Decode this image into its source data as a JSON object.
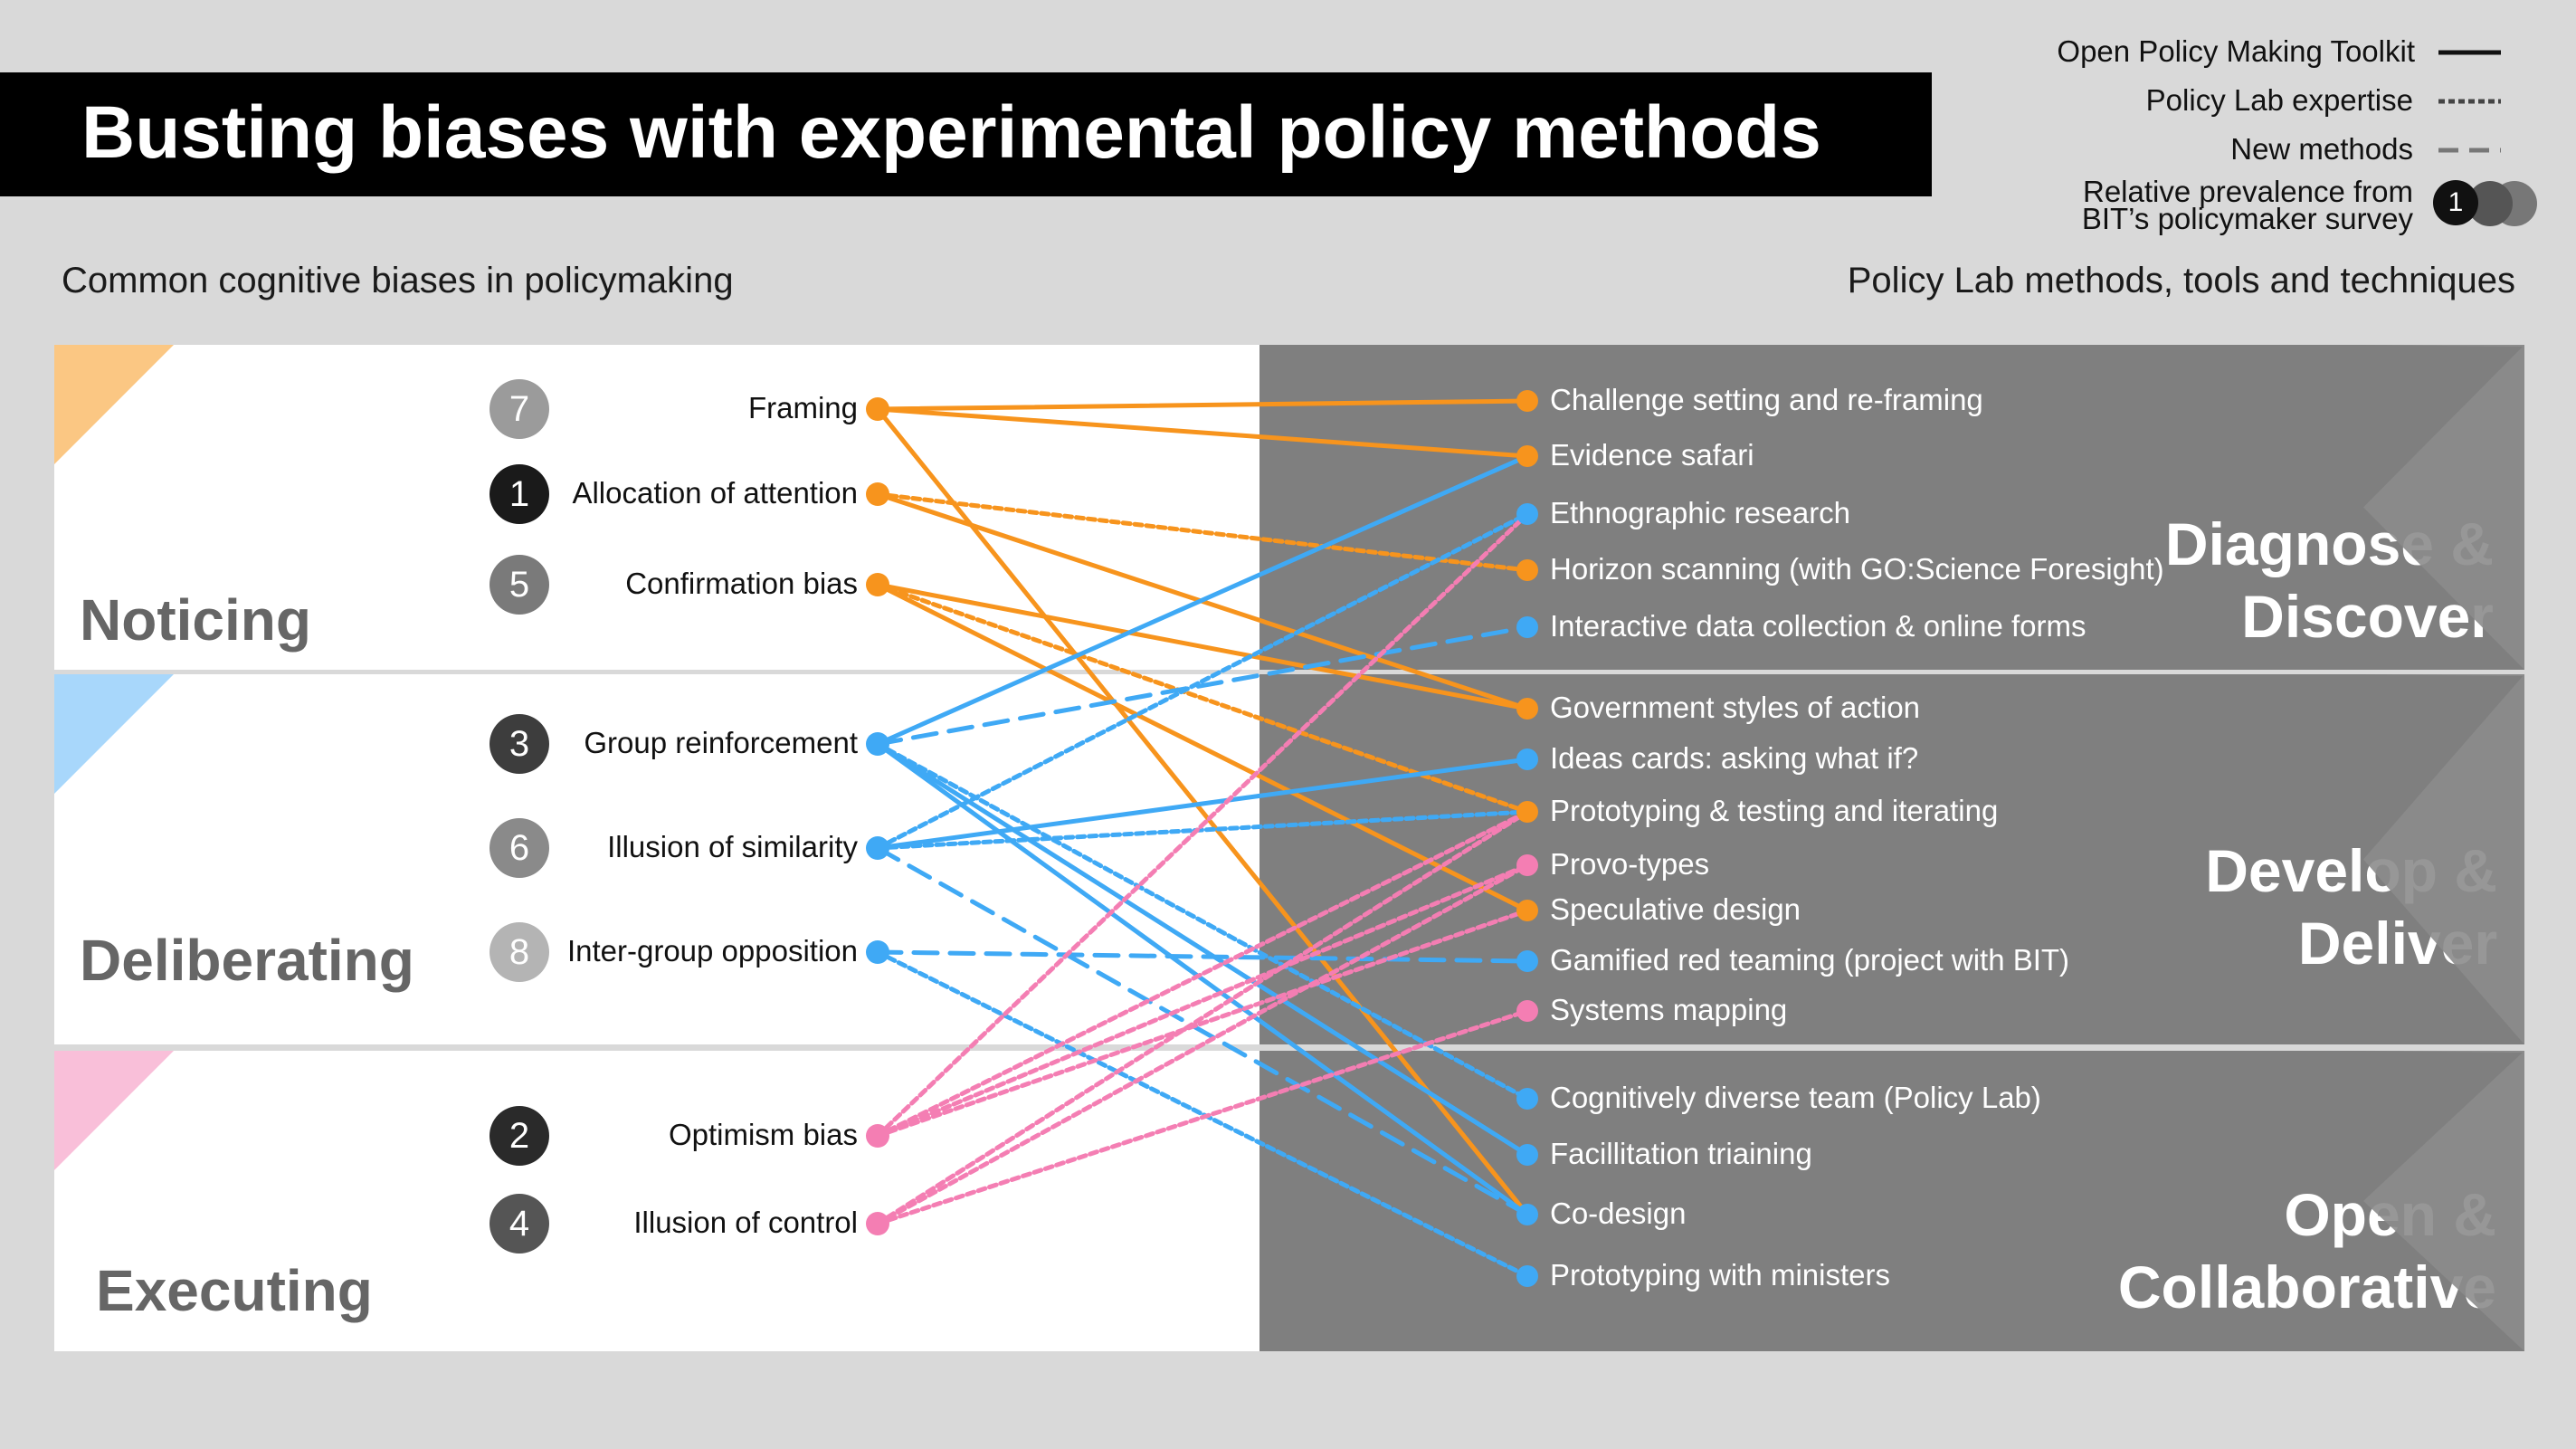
{
  "title": "Busting biases with experimental policy methods",
  "left_heading": "Common cognitive biases in policymaking",
  "right_heading": "Policy Lab methods, tools and techniques",
  "legend": {
    "toolkit": "Open Policy Making Toolkit",
    "expertise": "Policy Lab expertise",
    "new_methods": "New methods",
    "prevalence_line1": "Relative prevalence from",
    "prevalence_line2": "BIT’s policymaker survey",
    "prevalence_example": "1"
  },
  "colors": {
    "noticing": "#f7941d",
    "deliberating": "#3fa9f5",
    "executing": "#f47eb3",
    "panel": "#7f7f7f"
  },
  "categories": [
    {
      "id": "noticing",
      "label": "Noticing"
    },
    {
      "id": "deliberating",
      "label": "Deliberating"
    },
    {
      "id": "executing",
      "label": "Executing"
    }
  ],
  "stages": [
    {
      "line1": "Diagnose &",
      "line2": "Discover"
    },
    {
      "line1": "Develop &",
      "line2": "Deliver"
    },
    {
      "line1": "Open &",
      "line2": "Collaborative"
    }
  ],
  "biases": [
    {
      "id": "framing",
      "label": "Framing",
      "rank": "7",
      "badge_color": "#9b9b9b",
      "category": "noticing"
    },
    {
      "id": "attention",
      "label": "Allocation of attention",
      "rank": "1",
      "badge_color": "#1a1a1a",
      "category": "noticing"
    },
    {
      "id": "confirmation",
      "label": "Confirmation bias",
      "rank": "5",
      "badge_color": "#7a7a7a",
      "category": "noticing"
    },
    {
      "id": "group",
      "label": "Group reinforcement",
      "rank": "3",
      "badge_color": "#3d3d3d",
      "category": "deliberating"
    },
    {
      "id": "similarity",
      "label": "Illusion of similarity",
      "rank": "6",
      "badge_color": "#8a8a8a",
      "category": "deliberating"
    },
    {
      "id": "intergroup",
      "label": "Inter-group opposition",
      "rank": "8",
      "badge_color": "#b4b4b4",
      "category": "deliberating"
    },
    {
      "id": "optimism",
      "label": "Optimism bias",
      "rank": "2",
      "badge_color": "#2a2a2a",
      "category": "executing"
    },
    {
      "id": "control",
      "label": "Illusion of control",
      "rank": "4",
      "badge_color": "#555555",
      "category": "executing"
    }
  ],
  "methods": [
    {
      "id": "challenge",
      "label": "Challenge setting and re-framing",
      "color": "noticing"
    },
    {
      "id": "safari",
      "label": "Evidence safari",
      "color": "noticing"
    },
    {
      "id": "ethno",
      "label": "Ethnographic research",
      "color": "deliberating"
    },
    {
      "id": "horizon",
      "label": "Horizon scanning (with GO:Science Foresight)",
      "color": "noticing"
    },
    {
      "id": "interactive",
      "label": "Interactive data collection & online forms",
      "color": "deliberating"
    },
    {
      "id": "govstyles",
      "label": "Government styles of action",
      "color": "noticing"
    },
    {
      "id": "ideas",
      "label": "Ideas cards: asking what if?",
      "color": "deliberating"
    },
    {
      "id": "prototyping",
      "label": "Prototyping & testing and iterating",
      "color": "noticing"
    },
    {
      "id": "provo",
      "label": "Provo-types",
      "color": "executing"
    },
    {
      "id": "speculative",
      "label": "Speculative design",
      "color": "noticing"
    },
    {
      "id": "gamified",
      "label": "Gamified red teaming (project with BIT)",
      "color": "deliberating"
    },
    {
      "id": "systems",
      "label": "Systems mapping",
      "color": "executing"
    },
    {
      "id": "diverse",
      "label": "Cognitively diverse team (Policy Lab)",
      "color": "deliberating"
    },
    {
      "id": "facil",
      "label": "Facillitation triaining",
      "color": "deliberating"
    },
    {
      "id": "codesign",
      "label": "Co-design",
      "color": "deliberating"
    },
    {
      "id": "ministers",
      "label": "Prototyping with ministers",
      "color": "deliberating"
    }
  ],
  "links": [
    {
      "from": "framing",
      "to": "challenge",
      "style": "toolkit"
    },
    {
      "from": "framing",
      "to": "safari",
      "style": "toolkit"
    },
    {
      "from": "framing",
      "to": "codesign",
      "style": "toolkit"
    },
    {
      "from": "attention",
      "to": "horizon",
      "style": "expertise"
    },
    {
      "from": "attention",
      "to": "govstyles",
      "style": "toolkit"
    },
    {
      "from": "confirmation",
      "to": "govstyles",
      "style": "toolkit"
    },
    {
      "from": "confirmation",
      "to": "prototyping",
      "style": "expertise"
    },
    {
      "from": "confirmation",
      "to": "speculative",
      "style": "toolkit"
    },
    {
      "from": "group",
      "to": "safari",
      "style": "toolkit"
    },
    {
      "from": "group",
      "to": "interactive",
      "style": "new"
    },
    {
      "from": "group",
      "to": "diverse",
      "style": "expertise"
    },
    {
      "from": "group",
      "to": "facil",
      "style": "toolkit"
    },
    {
      "from": "group",
      "to": "codesign",
      "style": "toolkit"
    },
    {
      "from": "similarity",
      "to": "ethno",
      "style": "expertise"
    },
    {
      "from": "similarity",
      "to": "ideas",
      "style": "toolkit"
    },
    {
      "from": "similarity",
      "to": "prototyping",
      "style": "expertise"
    },
    {
      "from": "similarity",
      "to": "codesign",
      "style": "new"
    },
    {
      "from": "intergroup",
      "to": "gamified",
      "style": "new"
    },
    {
      "from": "intergroup",
      "to": "ministers",
      "style": "expertise"
    },
    {
      "from": "optimism",
      "to": "ethno",
      "style": "expertise"
    },
    {
      "from": "optimism",
      "to": "prototyping",
      "style": "expertise"
    },
    {
      "from": "optimism",
      "to": "provo",
      "style": "expertise"
    },
    {
      "from": "optimism",
      "to": "speculative",
      "style": "expertise"
    },
    {
      "from": "control",
      "to": "prototyping",
      "style": "expertise"
    },
    {
      "from": "control",
      "to": "provo",
      "style": "expertise"
    },
    {
      "from": "control",
      "to": "systems",
      "style": "expertise"
    }
  ]
}
